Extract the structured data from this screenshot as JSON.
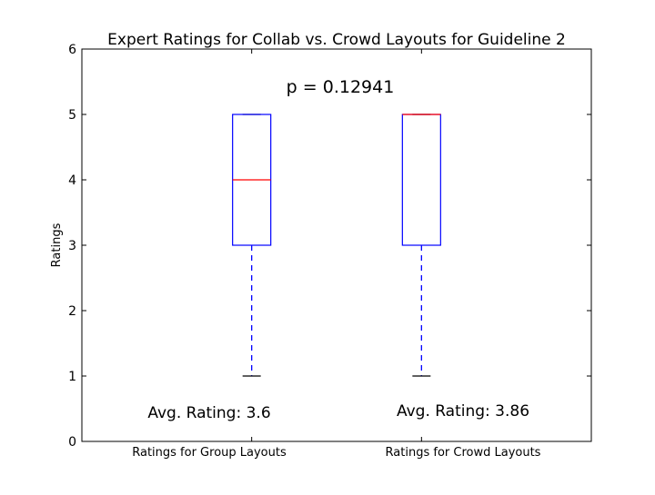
{
  "chart_data": {
    "type": "box",
    "title": "Expert Ratings for Collab vs. Crowd Layouts for Guideline 2",
    "ylabel": "Ratings",
    "xlabel": "",
    "ylim": [
      0,
      6
    ],
    "yticks": [
      "0",
      "1",
      "2",
      "3",
      "4",
      "5",
      "6"
    ],
    "grid": false,
    "categories": [
      "Ratings for Group Layouts",
      "Ratings for Crowd Layouts"
    ],
    "boxes": [
      {
        "category": "Ratings for Group Layouts",
        "whisker_low": 1,
        "q1": 3,
        "median": 4,
        "q3": 5,
        "whisker_high": 5
      },
      {
        "category": "Ratings for Crowd Layouts",
        "whisker_low": 1,
        "q1": 3,
        "median": 5,
        "q3": 5,
        "whisker_high": 5
      }
    ],
    "annotations": {
      "p_value": "p = 0.12941",
      "avg_labels": [
        "Avg. Rating: 3.6",
        "Avg. Rating: 3.86"
      ]
    },
    "colors": {
      "box": "#0000ff",
      "median": "#ff0000",
      "whisker_cap": "#000000",
      "axis": "#000000"
    }
  }
}
